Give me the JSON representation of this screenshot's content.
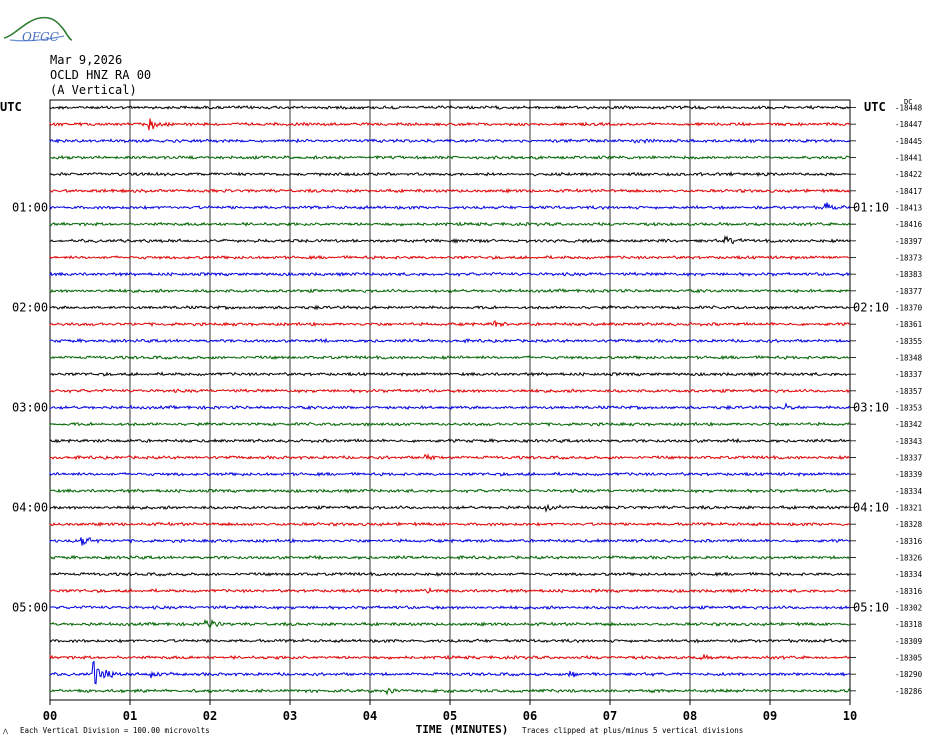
{
  "header": {
    "logo_text": "OFGC",
    "date": "Mar 9,2026",
    "station": "OCLD HNZ RA 00",
    "component": "(A Vertical)"
  },
  "chart_data": {
    "type": "line",
    "description_type": "helicorder",
    "left_axis_title": "UTC",
    "right_axis_title": "UTC",
    "right_column_title": "DC",
    "xlabel": "TIME (MINUTES)",
    "x_ticks": [
      "00",
      "01",
      "02",
      "03",
      "04",
      "05",
      "06",
      "07",
      "08",
      "09",
      "10"
    ],
    "x_range_minutes": [
      0,
      10
    ],
    "rows_count": 36,
    "row_minutes": 10,
    "left_time_labels": [
      {
        "row": 6,
        "text": "01:00"
      },
      {
        "row": 12,
        "text": "02:00"
      },
      {
        "row": 18,
        "text": "03:00"
      },
      {
        "row": 24,
        "text": "04:00"
      },
      {
        "row": 30,
        "text": "05:00"
      }
    ],
    "right_time_labels": [
      {
        "row": 6,
        "text": "01:10"
      },
      {
        "row": 12,
        "text": "02:10"
      },
      {
        "row": 18,
        "text": "03:10"
      },
      {
        "row": 24,
        "text": "04:10"
      },
      {
        "row": 30,
        "text": "05:10"
      }
    ],
    "dc_offsets": [
      "-18448",
      "-18447",
      "-18445",
      "-18441",
      "-18422",
      "-18417",
      "-18413",
      "-18416",
      "-18397",
      "-18373",
      "-18383",
      "-18377",
      "-18370",
      "-18361",
      "-18355",
      "-18348",
      "-18337",
      "-18357",
      "-18353",
      "-18342",
      "-18343",
      "-18337",
      "-18339",
      "-18334",
      "-18321",
      "-18328",
      "-18316",
      "-18326",
      "-18334",
      "-18316",
      "-18302",
      "-18318",
      "-18309",
      "-18305",
      "-18290",
      "-18286"
    ],
    "trace_colors": [
      "#000000",
      "#e00000",
      "#0000e0",
      "#006400"
    ],
    "events": [
      {
        "row": 1,
        "minute": 1.25,
        "amp": 0.9
      },
      {
        "row": 2,
        "minute": 7.3,
        "amp": 0.5
      },
      {
        "row": 6,
        "minute": 9.7,
        "amp": 0.6
      },
      {
        "row": 8,
        "minute": 8.45,
        "amp": 0.5
      },
      {
        "row": 13,
        "minute": 5.55,
        "amp": 0.4
      },
      {
        "row": 18,
        "minute": 9.2,
        "amp": 0.5
      },
      {
        "row": 21,
        "minute": 4.7,
        "amp": 0.5
      },
      {
        "row": 24,
        "minute": 6.2,
        "amp": 0.4
      },
      {
        "row": 26,
        "minute": 0.4,
        "amp": 0.7
      },
      {
        "row": 29,
        "minute": 4.7,
        "amp": 0.5
      },
      {
        "row": 31,
        "minute": 1.95,
        "amp": 0.7
      },
      {
        "row": 33,
        "minute": 8.1,
        "amp": 0.4
      },
      {
        "row": 34,
        "minute": 0.55,
        "amp": 1.6
      },
      {
        "row": 34,
        "minute": 1.25,
        "amp": 0.6
      },
      {
        "row": 34,
        "minute": 6.5,
        "amp": 0.5
      },
      {
        "row": 35,
        "minute": 4.2,
        "amp": 0.5
      }
    ],
    "footer_left": "Each Vertical Division =  100.00 microvolts",
    "footer_right": "Traces clipped at plus/minus 5 vertical divisions",
    "grid": true
  }
}
